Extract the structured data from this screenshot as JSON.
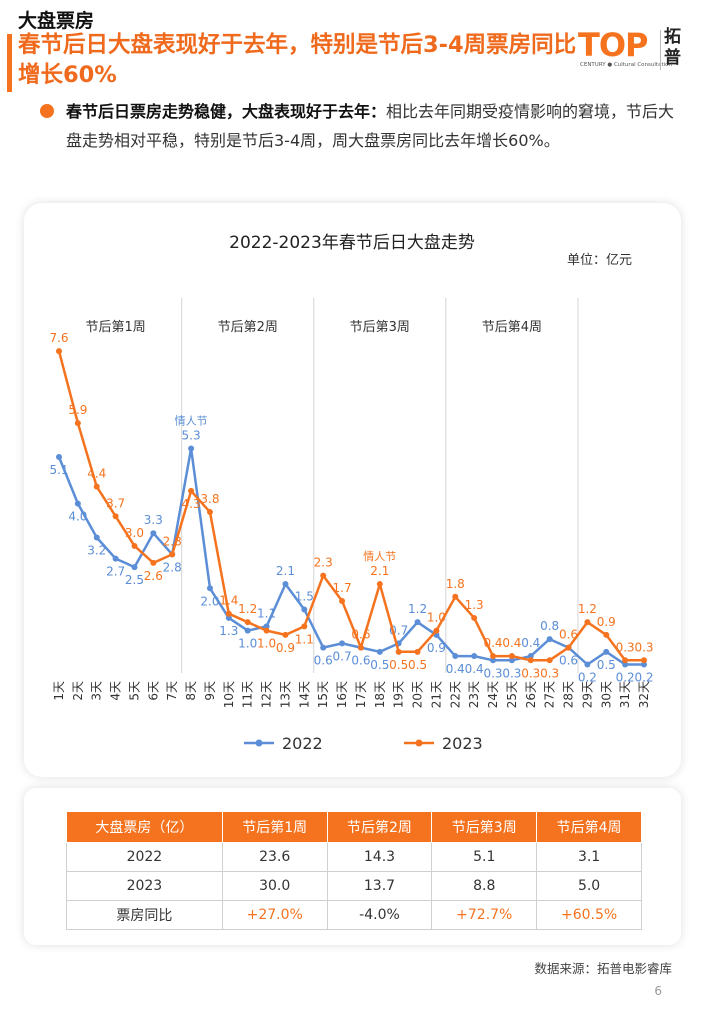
{
  "header": {
    "section": "大盘票房",
    "headline": "春节后日大盘表现好于去年，特别是节后3-4周票房同比增长60%"
  },
  "logo": {
    "mark": "TOP",
    "sub": "CENTURY ● Cultural Consultation",
    "cn": "拓普"
  },
  "bullet": {
    "lead": "春节后日票房走势稳健，大盘表现好于去年：",
    "text": "相比去年同期受疫情影响的窘境，节后大盘走势相对平稳，特别是节后3-4周，周大盘票房同比去年增长60%。"
  },
  "chart_data": {
    "type": "line",
    "title": "2022-2023年春节后日大盘走势",
    "unit_label": "单位：亿元",
    "x": [
      "1天",
      "2天",
      "3天",
      "4天",
      "5天",
      "6天",
      "7天",
      "8天",
      "9天",
      "10天",
      "11天",
      "12天",
      "13天",
      "14天",
      "15天",
      "16天",
      "17天",
      "18天",
      "19天",
      "20天",
      "21天",
      "22天",
      "23天",
      "24天",
      "25天",
      "26天",
      "27天",
      "28天",
      "29天",
      "30天",
      "31天",
      "32天"
    ],
    "series": [
      {
        "name": "2022",
        "color": "#5b8ed6",
        "values": [
          5.1,
          4.0,
          3.2,
          2.7,
          2.5,
          3.3,
          2.8,
          5.3,
          2.0,
          1.3,
          1.0,
          1.1,
          2.1,
          1.5,
          0.6,
          0.7,
          0.6,
          0.5,
          0.7,
          1.2,
          0.9,
          0.4,
          0.4,
          0.3,
          0.3,
          0.4,
          0.8,
          0.6,
          0.2,
          0.5,
          0.2,
          0.2
        ]
      },
      {
        "name": "2023",
        "color": "#f5731f",
        "values": [
          7.6,
          5.9,
          4.4,
          3.7,
          3.0,
          2.6,
          2.8,
          4.3,
          3.8,
          1.4,
          1.2,
          1.0,
          0.9,
          1.1,
          2.3,
          1.7,
          0.6,
          2.1,
          0.5,
          0.5,
          1.0,
          1.8,
          1.3,
          0.4,
          0.4,
          0.3,
          0.3,
          0.6,
          1.2,
          0.9,
          0.3,
          0.3
        ]
      }
    ],
    "weeks": [
      "节后第1周",
      "节后第2周",
      "节后第3周",
      "节后第4周"
    ],
    "annotations": [
      {
        "text": "情人节",
        "series": "2022",
        "index": 7
      },
      {
        "text": "情人节",
        "series": "2023",
        "index": 17
      }
    ],
    "ylim": [
      0,
      8.5
    ],
    "grid": false,
    "legend_position": "bottom"
  },
  "table": {
    "header": [
      "大盘票房（亿）",
      "节后第1周",
      "节后第2周",
      "节后第3周",
      "节后第4周"
    ],
    "rows": [
      {
        "label": "2022",
        "values": [
          "23.6",
          "14.3",
          "5.1",
          "3.1"
        ]
      },
      {
        "label": "2023",
        "values": [
          "30.0",
          "13.7",
          "8.8",
          "5.0"
        ]
      },
      {
        "label": "票房同比",
        "values": [
          "+27.0%",
          "-4.0%",
          "+72.7%",
          "+60.5%"
        ]
      }
    ]
  },
  "source": "数据来源：拓普电影睿库",
  "page": "6"
}
